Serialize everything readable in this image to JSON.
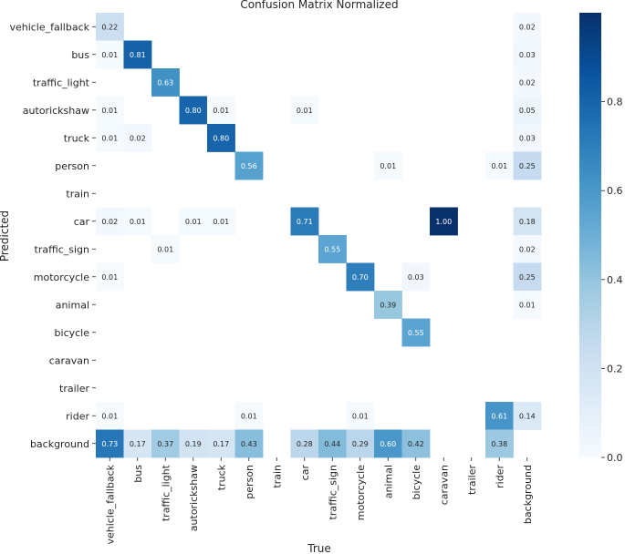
{
  "chart_data": {
    "type": "heatmap",
    "title": "Confusion Matrix Normalized",
    "xlabel": "True",
    "ylabel": "Predicted",
    "rows": [
      "vehicle_fallback",
      "bus",
      "traffic_light",
      "autorickshaw",
      "truck",
      "person",
      "train",
      "car",
      "traffic_sign",
      "motorcycle",
      "animal",
      "bicycle",
      "caravan",
      "trailer",
      "rider",
      "background"
    ],
    "columns": [
      "vehicle_fallback",
      "bus",
      "traffic_light",
      "autorickshaw",
      "truck",
      "person",
      "train",
      "car",
      "traffic_sign",
      "motorcycle",
      "animal",
      "bicycle",
      "caravan",
      "trailer",
      "rider",
      "background"
    ],
    "matrix": [
      [
        0.22,
        null,
        null,
        null,
        null,
        null,
        null,
        null,
        null,
        null,
        null,
        null,
        null,
        null,
        null,
        0.02
      ],
      [
        0.01,
        0.81,
        null,
        null,
        null,
        null,
        null,
        null,
        null,
        null,
        null,
        null,
        null,
        null,
        null,
        0.03
      ],
      [
        null,
        null,
        0.63,
        null,
        null,
        null,
        null,
        null,
        null,
        null,
        null,
        null,
        null,
        null,
        null,
        0.02
      ],
      [
        0.01,
        null,
        null,
        0.8,
        0.01,
        null,
        null,
        0.01,
        null,
        null,
        null,
        null,
        null,
        null,
        null,
        0.05
      ],
      [
        0.01,
        0.02,
        null,
        null,
        0.8,
        null,
        null,
        null,
        null,
        null,
        null,
        null,
        null,
        null,
        null,
        0.03
      ],
      [
        null,
        null,
        null,
        null,
        null,
        0.56,
        null,
        null,
        null,
        null,
        0.01,
        null,
        null,
        null,
        0.01,
        0.25
      ],
      [
        null,
        null,
        null,
        null,
        null,
        null,
        null,
        null,
        null,
        null,
        null,
        null,
        null,
        null,
        null,
        null
      ],
      [
        0.02,
        0.01,
        null,
        0.01,
        0.01,
        null,
        null,
        0.71,
        null,
        null,
        null,
        null,
        1.0,
        null,
        null,
        0.18
      ],
      [
        null,
        null,
        0.01,
        null,
        null,
        null,
        null,
        null,
        0.55,
        null,
        null,
        null,
        null,
        null,
        null,
        0.02
      ],
      [
        0.01,
        null,
        null,
        null,
        null,
        null,
        null,
        null,
        null,
        0.7,
        null,
        0.03,
        null,
        null,
        null,
        0.25
      ],
      [
        null,
        null,
        null,
        null,
        null,
        null,
        null,
        null,
        null,
        null,
        0.39,
        null,
        null,
        null,
        null,
        0.01
      ],
      [
        null,
        null,
        null,
        null,
        null,
        null,
        null,
        null,
        null,
        null,
        null,
        0.55,
        null,
        null,
        null,
        null
      ],
      [
        null,
        null,
        null,
        null,
        null,
        null,
        null,
        null,
        null,
        null,
        null,
        null,
        null,
        null,
        null,
        null
      ],
      [
        null,
        null,
        null,
        null,
        null,
        null,
        null,
        null,
        null,
        null,
        null,
        null,
        null,
        null,
        null,
        null
      ],
      [
        0.01,
        null,
        null,
        null,
        null,
        0.01,
        null,
        null,
        null,
        0.01,
        null,
        null,
        null,
        null,
        0.61,
        0.14
      ],
      [
        0.73,
        0.17,
        0.37,
        0.19,
        0.17,
        0.43,
        null,
        0.28,
        0.44,
        0.29,
        0.6,
        0.42,
        null,
        null,
        0.38,
        null
      ]
    ],
    "colorbar": {
      "min": 0.0,
      "max": 1.0,
      "ticks": [
        "0.0",
        "0.2",
        "0.4",
        "0.6",
        "0.8"
      ],
      "colormap": "Blues"
    },
    "colors": {
      "low": "#f7fbff",
      "high": "#08306b",
      "text_dark": "#262626",
      "text_light": "#ffffff"
    }
  }
}
